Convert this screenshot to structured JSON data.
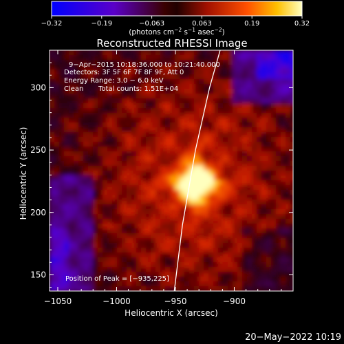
{
  "chart_data": {
    "type": "heatmap",
    "title": "Reconstructed RHESSI Image",
    "xlabel": "Heliocentric X (arcsec)",
    "ylabel": "Heliocentric Y (arcsec)",
    "xlim": [
      -1057,
      -850
    ],
    "ylim": [
      137,
      330
    ],
    "x_ticks": [
      -1050,
      -1000,
      -950,
      -900
    ],
    "x_tick_labels": [
      "−1050",
      "−1000",
      "−950",
      "−900"
    ],
    "y_ticks": [
      150,
      200,
      250,
      300
    ],
    "y_tick_labels": [
      "150",
      "200",
      "250",
      "300"
    ],
    "colorbar": {
      "range": [
        -0.32,
        0.32
      ],
      "ticks": [
        "−0.32",
        "−0.19",
        "−0.063",
        "0.063",
        "0.19",
        "0.32"
      ],
      "unit_base": "(photons cm",
      "unit_exp1": "−2",
      "unit_mid": " s",
      "unit_exp2": "−1",
      "unit_end": " asec",
      "unit_exp3": "−2",
      "unit_close": ")"
    },
    "annotations": [
      "9−Apr−2015 10:18:36.000 to 10:21:40.000",
      "Detectors: 3F 5F 6F 7F 8F 9F, Att 0",
      "Energy Range: 3.0 − 6.0 keV",
      "Clean",
      "Total counts: 1.51E+04"
    ],
    "peak_label": "Position of Peak = [−935,225]",
    "peak": {
      "x": -935,
      "y": 225
    },
    "limb_curve": [
      [
        -951,
        137
      ],
      [
        -944,
        190
      ],
      [
        -933,
        250
      ],
      [
        -921,
        300
      ],
      [
        -912,
        330
      ]
    ]
  },
  "footer": {
    "timestamp": "20−May−2022 10:19"
  },
  "colors": {
    "background": "#000000",
    "text": "#ffffff",
    "limb": "#ffffff"
  }
}
